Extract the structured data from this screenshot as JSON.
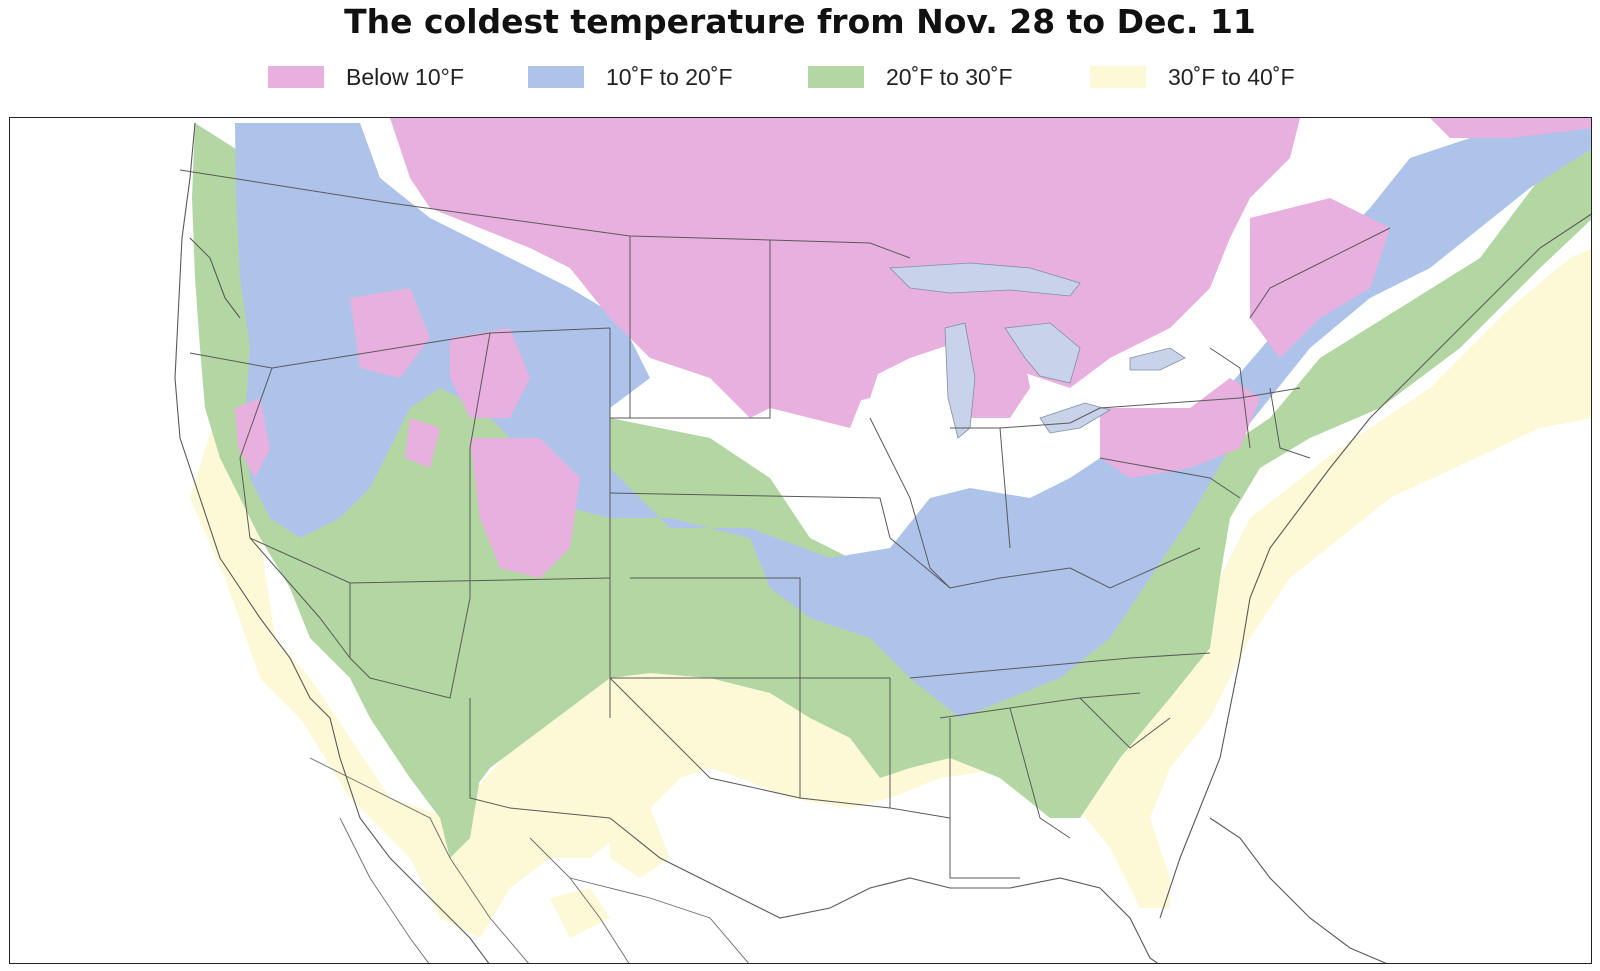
{
  "title": "The coldest temperature from Nov. 28 to Dec. 11",
  "legend": [
    {
      "label": "Below 10°F",
      "color": "#e8b0de"
    },
    {
      "label": "10˚F to 20˚F",
      "color": "#adc3ea"
    },
    {
      "label": "20˚F to 30˚F",
      "color": "#b3d7a3"
    },
    {
      "label": "30˚F to 40˚F",
      "color": "#fdf8d6"
    }
  ],
  "map": {
    "region": "United States",
    "background": "#ffffff",
    "border_color": "#5a5a5a",
    "water_color": "#c8d2e8"
  }
}
